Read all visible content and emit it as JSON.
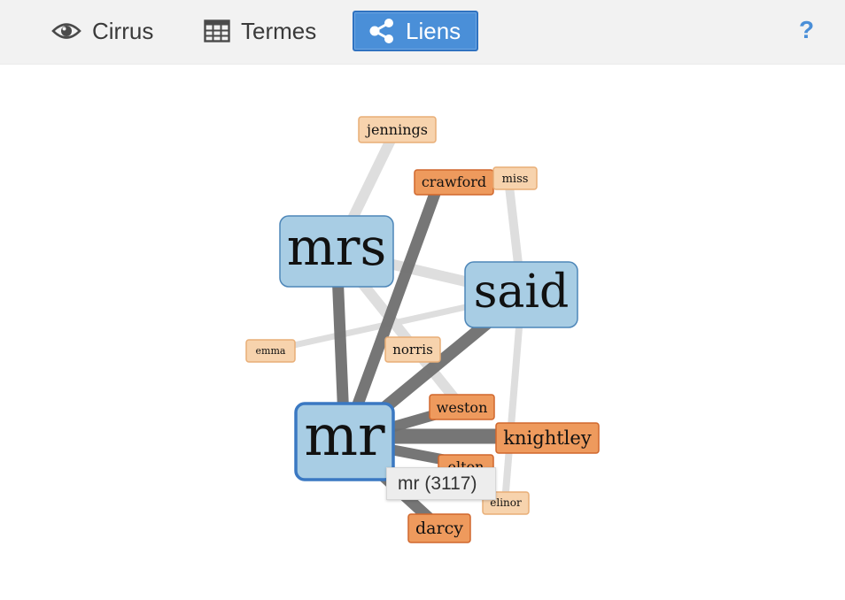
{
  "toolbar": {
    "tabs": [
      {
        "label": "Cirrus",
        "icon": "eye-icon",
        "active": false
      },
      {
        "label": "Termes",
        "icon": "table-grid-icon",
        "active": true
      },
      {
        "label": "Liens",
        "icon": "share-icon",
        "active": true
      }
    ],
    "help_label": "?"
  },
  "graph": {
    "colors": {
      "keyword_fill": "#a8cde4",
      "keyword_stroke": "#4d86b8",
      "context_dark_fill": "#ee9a5d",
      "context_dark_stroke": "#d0672d",
      "context_light_fill": "#f7d3ad",
      "context_light_stroke": "#e8ae77",
      "edge_dark": "#6f6f6f",
      "edge_light": "#dddddd"
    },
    "nodes": [
      {
        "id": "mrs",
        "label": "mrs",
        "kind": "keyword"
      },
      {
        "id": "said",
        "label": "said",
        "kind": "keyword"
      },
      {
        "id": "mr",
        "label": "mr",
        "kind": "keyword",
        "selected": true
      },
      {
        "id": "jennings",
        "label": "jennings",
        "kind": "context-light"
      },
      {
        "id": "crawford",
        "label": "crawford",
        "kind": "context-dark"
      },
      {
        "id": "miss",
        "label": "miss",
        "kind": "context-light"
      },
      {
        "id": "emma",
        "label": "emma",
        "kind": "context-light"
      },
      {
        "id": "norris",
        "label": "norris",
        "kind": "context-light"
      },
      {
        "id": "weston",
        "label": "weston",
        "kind": "context-dark"
      },
      {
        "id": "knightley",
        "label": "knightley",
        "kind": "context-dark"
      },
      {
        "id": "elton",
        "label": "elton",
        "kind": "context-dark"
      },
      {
        "id": "elinor",
        "label": "elinor",
        "kind": "context-light"
      },
      {
        "id": "darcy",
        "label": "darcy",
        "kind": "context-dark"
      }
    ],
    "tooltip": "mr (3117)"
  }
}
